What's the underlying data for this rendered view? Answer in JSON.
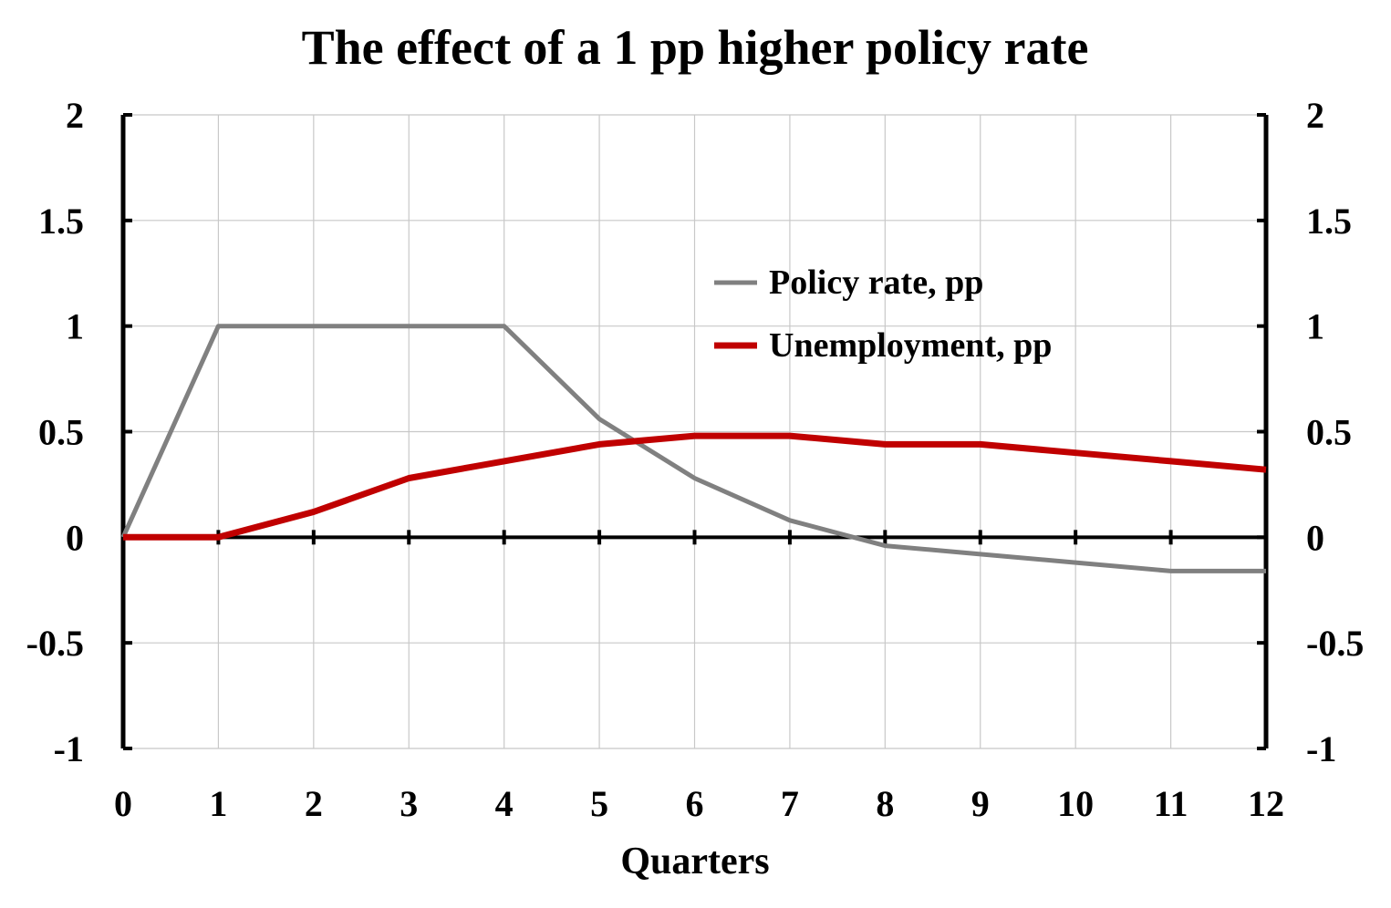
{
  "chart_data": {
    "type": "line",
    "title": "The effect of a 1 pp higher policy rate",
    "xlabel": "Quarters",
    "ylabel": "",
    "x": [
      0,
      1,
      2,
      3,
      4,
      5,
      6,
      7,
      8,
      9,
      10,
      11,
      12
    ],
    "xlim": [
      0,
      12
    ],
    "ylim": [
      -1,
      2
    ],
    "y_ticks": [
      -1,
      -0.5,
      0,
      0.5,
      1,
      1.5,
      2
    ],
    "y_tick_labels": [
      "-1",
      "-0.5",
      "0",
      "0.5",
      "1",
      "1.5",
      "2"
    ],
    "x_tick_labels": [
      "0",
      "1",
      "2",
      "3",
      "4",
      "5",
      "6",
      "7",
      "8",
      "9",
      "10",
      "11",
      "12"
    ],
    "secondary_y_axis": true,
    "grid": true,
    "legend_position": "upper-right-center",
    "series": [
      {
        "name": "Policy rate, pp",
        "color": "#808080",
        "values": [
          0,
          1,
          1,
          1,
          1,
          0.56,
          0.28,
          0.08,
          -0.04,
          -0.08,
          -0.12,
          -0.16,
          -0.16
        ]
      },
      {
        "name": "Unemployment, pp",
        "color": "#C00000",
        "values": [
          0,
          0,
          0.12,
          0.28,
          0.36,
          0.44,
          0.48,
          0.48,
          0.44,
          0.44,
          0.4,
          0.36,
          0.32
        ]
      }
    ]
  }
}
